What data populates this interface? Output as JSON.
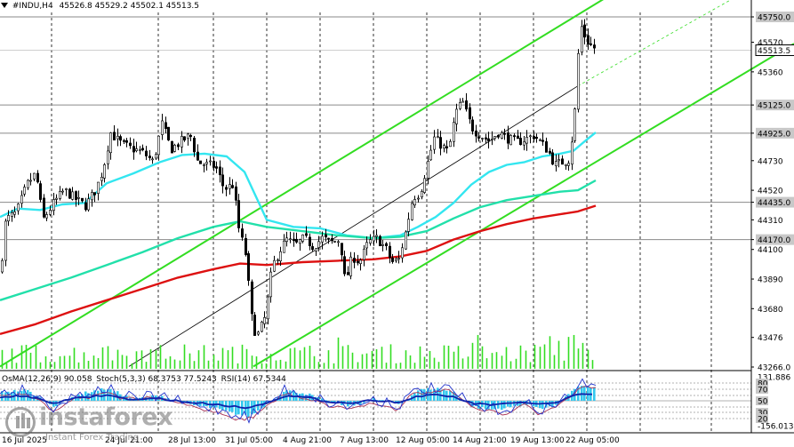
{
  "header": {
    "symbol": "#INDU,H4",
    "ohlc": "45526.8 45529.2 45502.1 45513.5"
  },
  "indicators_header": {
    "osma": "OsMA(12,26,9) 90.058",
    "stoch": "Stoch(5,3,3) 68.3753 77.5243",
    "rsi": "RSI(14) 67.5344"
  },
  "watermark": {
    "brand": "instaforex",
    "tagline": "Instant Forex Trading"
  },
  "colors": {
    "candle": "#000000",
    "channel": "#33dd22",
    "ema_short": "#33e6f0",
    "ema_mid": "#22e0aa",
    "ema_long": "#dd1111",
    "hist": "#33c8ee",
    "stoch_main": "#2233cc",
    "stoch_signal": "#aa3355",
    "grid": "#000000"
  },
  "chart_data": {
    "type": "candlestick",
    "y_axis": {
      "min": 43266,
      "max": 45900,
      "ticks": [
        45750.0,
        45570,
        45360,
        45125.0,
        44925.0,
        44730,
        44520,
        44435.0,
        44310,
        44170.0,
        44100,
        43890,
        43680,
        43476,
        43266.0
      ],
      "tick_labels": [
        "45750.0",
        "45570",
        "45360",
        "45125.0",
        "44925.0",
        "44730",
        "44520",
        "44435.0",
        "44310",
        "44170.0",
        "44100",
        "43890",
        "43680",
        "43476",
        "43266.0"
      ],
      "current_price": 45513.5,
      "current_price_label": "45513.5"
    },
    "x_axis": {
      "tick_labels": [
        "16 Jul 2025",
        "24 Jul 21:00",
        "28 Jul 13:00",
        "31 Jul 05:00",
        "4 Aug 21:00",
        "7 Aug 13:00",
        "12 Aug 05:00",
        "14 Aug 21:00",
        "19 Aug 13:00",
        "22 Aug 05:00"
      ]
    },
    "price_levels": [
      45750.0,
      45125.0,
      44925.0,
      44435.0,
      44170.0
    ],
    "sub_window": {
      "y_tick_labels": [
        "131.886",
        "80",
        "70",
        "50",
        "30",
        "20",
        "-156.013"
      ]
    }
  }
}
